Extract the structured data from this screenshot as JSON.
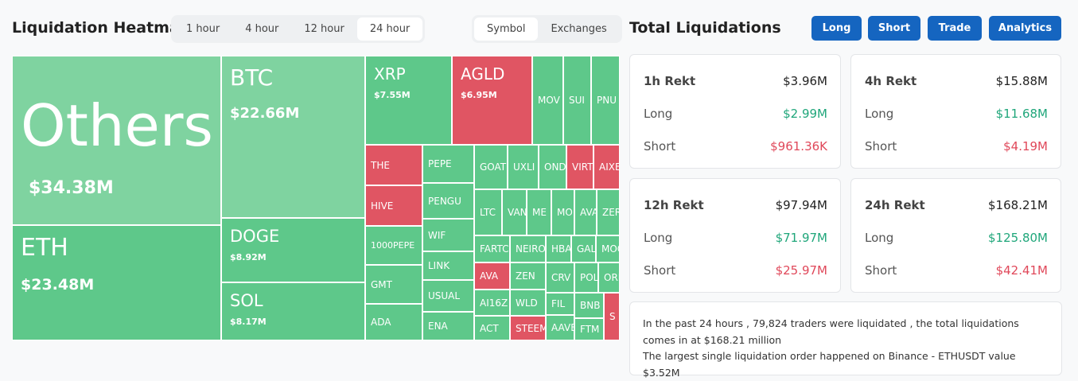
{
  "header": {
    "title": "Liquidation Heatmap",
    "time_tabs": [
      "1 hour",
      "4 hour",
      "12 hour",
      "24 hour"
    ],
    "view_tabs": [
      "Symbol",
      "Exchanges"
    ]
  },
  "heatmap": {
    "tiles": [
      {
        "label": "Others",
        "value": "$34.38M"
      },
      {
        "label": "ETH",
        "value": "$23.48M"
      },
      {
        "label": "BTC",
        "value": "$22.66M"
      },
      {
        "label": "DOGE",
        "value": "$8.92M"
      },
      {
        "label": "SOL",
        "value": "$8.17M"
      },
      {
        "label": "XRP",
        "value": "$7.55M"
      },
      {
        "label": "AGLD",
        "value": "$6.95M"
      },
      {
        "label": "MOV"
      },
      {
        "label": "SUI"
      },
      {
        "label": "PNU"
      },
      {
        "label": "THE"
      },
      {
        "label": "HIVE"
      },
      {
        "label": "1000PEPE"
      },
      {
        "label": "GMT"
      },
      {
        "label": "ADA"
      },
      {
        "label": "PEPE"
      },
      {
        "label": "PENGU"
      },
      {
        "label": "WIF"
      },
      {
        "label": "LINK"
      },
      {
        "label": "USUAL"
      },
      {
        "label": "ENA"
      },
      {
        "label": "GOAT"
      },
      {
        "label": "UXLI"
      },
      {
        "label": "OND"
      },
      {
        "label": "VIRT"
      },
      {
        "label": "AIXE"
      },
      {
        "label": "LTC"
      },
      {
        "label": "VAN"
      },
      {
        "label": "ME"
      },
      {
        "label": "MO"
      },
      {
        "label": "AVA"
      },
      {
        "label": "ZER"
      },
      {
        "label": "FARTC"
      },
      {
        "label": "NEIRO"
      },
      {
        "label": "HBA"
      },
      {
        "label": "GAL"
      },
      {
        "label": "MOO"
      },
      {
        "label": "AVA"
      },
      {
        "label": "ZEN"
      },
      {
        "label": "CRV"
      },
      {
        "label": "POL"
      },
      {
        "label": "ORI"
      },
      {
        "label": "AI16Z"
      },
      {
        "label": "WLD"
      },
      {
        "label": "FIL"
      },
      {
        "label": "BNB"
      },
      {
        "label": "S"
      },
      {
        "label": "ACT"
      },
      {
        "label": "STEEM"
      },
      {
        "label": "AAVE"
      },
      {
        "label": "FTM"
      }
    ]
  },
  "summary": {
    "title": "Total Liquidations",
    "buttons": [
      "Long",
      "Short",
      "Trade",
      "Analytics"
    ],
    "cards": [
      {
        "title": "1h Rekt",
        "total": "$3.96M",
        "rows": [
          {
            "label": "Long",
            "value": "$2.99M"
          },
          {
            "label": "Short",
            "value": "$961.36K"
          }
        ]
      },
      {
        "title": "4h Rekt",
        "total": "$15.88M",
        "rows": [
          {
            "label": "Long",
            "value": "$11.68M"
          },
          {
            "label": "Short",
            "value": "$4.19M"
          }
        ]
      },
      {
        "title": "12h Rekt",
        "total": "$97.94M",
        "rows": [
          {
            "label": "Long",
            "value": "$71.97M"
          },
          {
            "label": "Short",
            "value": "$25.97M"
          }
        ]
      },
      {
        "title": "24h Rekt",
        "total": "$168.21M",
        "rows": [
          {
            "label": "Long",
            "value": "$125.80M"
          },
          {
            "label": "Short",
            "value": "$42.41M"
          }
        ]
      }
    ],
    "note": [
      "In the past 24 hours , 79,824 traders were liquidated , the total liquidations comes in at $168.21 million",
      "The largest single liquidation order happened on Binance - ETHUSDT value $3.52M"
    ]
  }
}
